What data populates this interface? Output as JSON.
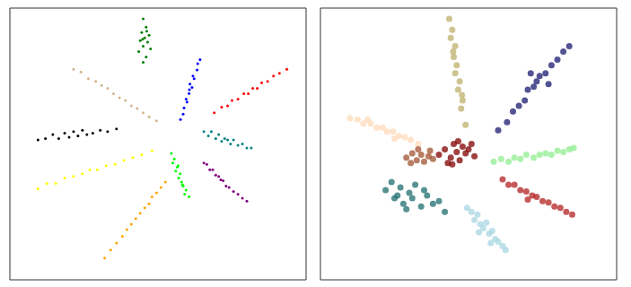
{
  "chart_data": [
    {
      "type": "scatter",
      "xlim": [
        0,
        100
      ],
      "ylim": [
        0,
        100
      ],
      "tick_labels": false,
      "marker": "circle",
      "series": [
        {
          "color": "#008000",
          "x": [
            45,
            46,
            44.5,
            47,
            45.5,
            44,
            46.5,
            45,
            47.5,
            43.5,
            46,
            45,
            44.8,
            46.2
          ],
          "values": [
            96,
            93,
            91,
            90,
            89,
            88,
            87.5,
            86,
            85,
            84,
            82,
            80,
            88.5,
            91.5
          ]
        },
        {
          "color": "#0000ff",
          "x": [
            57.6,
            58.5,
            58.8,
            59.8,
            59.5,
            60.5,
            60.6,
            61.5,
            60.8,
            62.2,
            61.8,
            63.2,
            63.4,
            64.2
          ],
          "values": [
            59,
            61,
            63.3,
            65.4,
            66.5,
            68.6,
            70,
            70.8,
            72,
            74,
            75,
            77.2,
            79.5,
            81
          ]
        },
        {
          "color": "#ff0000",
          "x": [
            69,
            71.5,
            73.5,
            75,
            77,
            79,
            80.5,
            82,
            83.5,
            85,
            87,
            89,
            91,
            93.5
          ],
          "values": [
            61.5,
            63.5,
            64,
            66,
            66.5,
            68.5,
            68.5,
            70.5,
            70.5,
            72.5,
            73,
            75,
            76,
            77.5
          ]
        },
        {
          "color": "#008080",
          "x": [
            65.5,
            67,
            68,
            69.5,
            70.5,
            71.5,
            72.5,
            73.5,
            74.5,
            75.5,
            77,
            78.5,
            80,
            81.5
          ],
          "values": [
            54.5,
            53,
            54.5,
            52,
            53.5,
            51,
            52,
            51.5,
            50,
            51.5,
            49.5,
            50,
            48.5,
            48.5
          ]
        },
        {
          "color": "#800080",
          "x": [
            65.5,
            66.5,
            67.5,
            68.5,
            69.5,
            70.5,
            71.2,
            72,
            73,
            74,
            75.5,
            77,
            78.5,
            80
          ],
          "values": [
            43,
            42.5,
            40.5,
            40.5,
            38.5,
            38,
            36.8,
            36.5,
            34.5,
            34,
            32.5,
            31.5,
            30,
            29
          ]
        },
        {
          "color": "#00ff00",
          "x": [
            54.5,
            55.5,
            55,
            56.5,
            56,
            57.5,
            57,
            58,
            58.5,
            59.5,
            59,
            60.5,
            56.8,
            58.2
          ],
          "values": [
            46.5,
            44.5,
            43,
            41.5,
            40,
            39,
            37.5,
            36,
            34.5,
            33,
            31.5,
            30.5,
            42,
            35
          ]
        },
        {
          "color": "#ffa500",
          "x": [
            52.5,
            51,
            49.5,
            48,
            47,
            45.5,
            44,
            42.5,
            41,
            39.5,
            38,
            36,
            34,
            32
          ],
          "values": [
            36,
            34,
            32,
            30.5,
            28,
            26.5,
            24.5,
            22.5,
            20.5,
            18.5,
            16,
            13.5,
            11,
            8
          ]
        },
        {
          "color": "#ffff00",
          "x": [
            9.5,
            12.5,
            15.5,
            18.5,
            21.5,
            24.5,
            27,
            29.5,
            32.5,
            35.5,
            38.5,
            41.5,
            44.5,
            48
          ],
          "values": [
            33.5,
            35.5,
            35.5,
            37.5,
            38,
            39,
            40.5,
            40.5,
            42,
            42.5,
            44,
            45,
            46,
            47.5
          ]
        },
        {
          "color": "#000000",
          "x": [
            9.5,
            12,
            14.5,
            16.5,
            18.5,
            20,
            21.5,
            23,
            24.5,
            26,
            28,
            30.5,
            33,
            36
          ],
          "values": [
            51.5,
            52,
            53.5,
            52,
            54,
            52.5,
            54.5,
            53,
            55,
            53.5,
            54,
            55,
            54.5,
            55.5
          ]
        },
        {
          "color": "#d2b48c",
          "x": [
            21.5,
            24,
            26.5,
            29,
            31,
            33,
            35,
            37,
            39,
            41,
            43,
            45,
            47,
            49.5
          ],
          "values": [
            77.5,
            76.5,
            74,
            73,
            71.5,
            70.5,
            68.5,
            67,
            66,
            64,
            63,
            61.5,
            60,
            58.5
          ]
        }
      ]
    },
    {
      "type": "scatter",
      "xlim": [
        0,
        100
      ],
      "ylim": [
        0,
        100
      ],
      "tick_labels": false,
      "marker": "circle",
      "series": [
        {
          "color": "#bdb06b",
          "x": [
            43.5,
            44.5,
            44,
            45.5,
            45,
            46,
            45.5,
            47,
            46.5,
            48,
            47.5,
            49,
            44.8,
            47.8
          ],
          "values": [
            96,
            92,
            89,
            86,
            82,
            79,
            76,
            73,
            70,
            66,
            63,
            57,
            84,
            68
          ]
        },
        {
          "color": "#191970",
          "x": [
            60,
            63,
            65,
            67,
            69,
            70,
            72,
            73,
            74,
            76,
            78,
            80,
            82,
            84,
            71,
            77
          ],
          "values": [
            55,
            58,
            62,
            64,
            66,
            70,
            71,
            73,
            75,
            76,
            79,
            81,
            84,
            86,
            76,
            72
          ]
        },
        {
          "color": "#ffdab9",
          "x": [
            10,
            12.5,
            14.5,
            17,
            19,
            21,
            22.5,
            24.5,
            26.5,
            28.5,
            30.5,
            33,
            16,
            25
          ],
          "values": [
            59.5,
            59,
            57.5,
            57.5,
            56,
            56,
            54.5,
            54.5,
            53,
            52.5,
            51.5,
            50,
            59,
            52
          ]
        },
        {
          "color": "#90ee90",
          "x": [
            58.5,
            61,
            63.5,
            65.5,
            67.5,
            69.5,
            72,
            74,
            76,
            78,
            80,
            82,
            84,
            85.5
          ],
          "values": [
            43.5,
            44.5,
            43.5,
            45,
            44.5,
            46,
            45,
            46,
            46.5,
            46,
            47.5,
            47,
            48,
            48.5
          ]
        },
        {
          "color": "#b22222",
          "x": [
            61.5,
            63.5,
            65.5,
            67.5,
            69.5,
            71.5,
            73,
            75,
            77,
            79,
            81,
            83,
            85,
            70
          ],
          "values": [
            37,
            35,
            35,
            33,
            32.5,
            31,
            30.5,
            29,
            28.5,
            27,
            26.5,
            25,
            24,
            29.5
          ]
        },
        {
          "color": "#1f6e6e",
          "x": [
            22,
            24,
            25,
            27,
            28,
            30,
            31,
            32,
            34,
            36,
            38,
            40,
            42,
            29,
            35,
            26
          ],
          "values": [
            33,
            36,
            30,
            34,
            28,
            32,
            30,
            35,
            27,
            31,
            28,
            29,
            25,
            26,
            33,
            31
          ]
        },
        {
          "color": "#a8d5e2",
          "x": [
            49.5,
            51,
            52,
            53,
            54,
            55,
            56,
            57,
            58,
            59,
            60,
            61.5,
            62.5,
            53.5,
            57.5
          ],
          "values": [
            26.5,
            25,
            22,
            24,
            20.5,
            19,
            21,
            17,
            18,
            15,
            14,
            12.5,
            11,
            17.5,
            13.5
          ]
        },
        {
          "color": "#a0522d",
          "x": [
            29,
            31,
            32.5,
            34,
            35,
            36.5,
            38,
            33,
            30.5,
            37
          ],
          "values": [
            45,
            46.5,
            44,
            46,
            43.5,
            45.5,
            44.5,
            48,
            43,
            47.5
          ]
        },
        {
          "color": "#800000",
          "x": [
            40,
            42,
            44,
            45,
            46,
            47,
            48,
            49,
            50,
            52,
            43,
            51,
            46.5,
            44.5
          ],
          "values": [
            46,
            48,
            45,
            50,
            47,
            44,
            49,
            46.5,
            48,
            45.5,
            43,
            50,
            51,
            42.5
          ]
        }
      ]
    }
  ]
}
